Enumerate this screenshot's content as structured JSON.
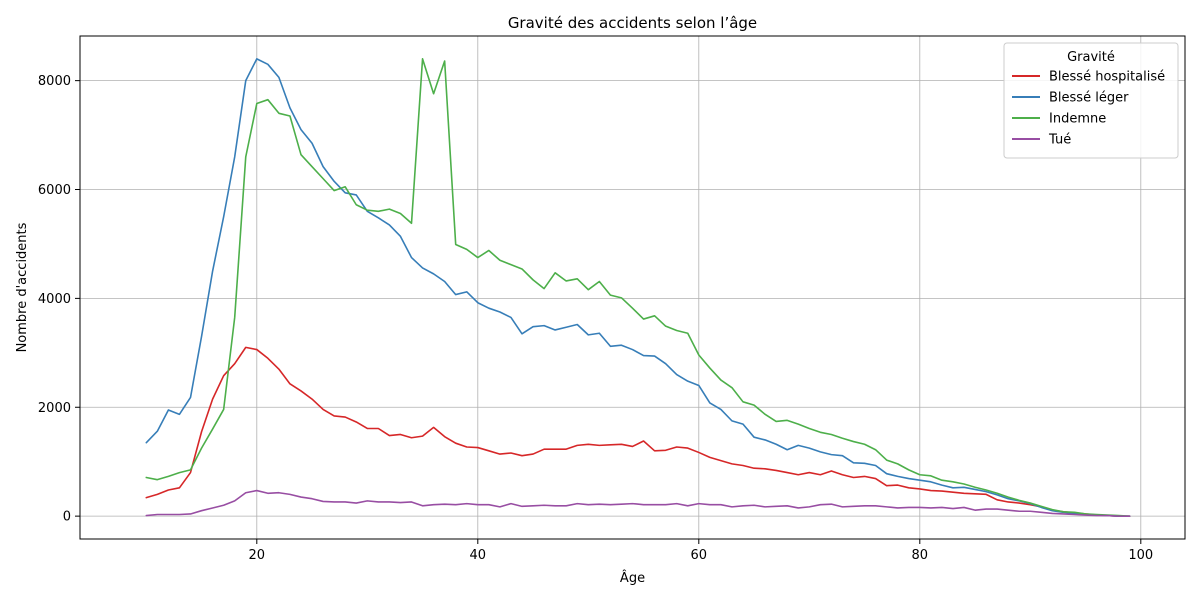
{
  "chart_data": {
    "type": "line",
    "title": "Gravité des accidents selon l’âge",
    "xlabel": "Âge",
    "ylabel": "Nombre d'accidents",
    "xlim": [
      4,
      104
    ],
    "ylim": [
      -420,
      8820
    ],
    "xticks": [
      20,
      40,
      60,
      80,
      100
    ],
    "yticks": [
      0,
      2000,
      4000,
      6000,
      8000
    ],
    "grid": true,
    "legend": {
      "title": "Gravité",
      "placement": "top-right"
    },
    "x": [
      10,
      11,
      12,
      13,
      14,
      15,
      16,
      17,
      18,
      19,
      20,
      21,
      22,
      23,
      24,
      25,
      26,
      27,
      28,
      29,
      30,
      31,
      32,
      33,
      34,
      35,
      36,
      37,
      38,
      39,
      40,
      41,
      42,
      43,
      44,
      45,
      46,
      47,
      48,
      49,
      50,
      51,
      52,
      53,
      54,
      55,
      56,
      57,
      58,
      59,
      60,
      61,
      62,
      63,
      64,
      65,
      66,
      67,
      68,
      69,
      70,
      71,
      72,
      73,
      74,
      75,
      76,
      77,
      78,
      79,
      80,
      81,
      82,
      83,
      84,
      85,
      86,
      87,
      88,
      89,
      90,
      91,
      92,
      93,
      94,
      95,
      96,
      97,
      98,
      99
    ],
    "series": [
      {
        "name": "Blessé hospitalisé",
        "color": "#d62728",
        "values": [
          340,
          400,
          480,
          520,
          800,
          1550,
          2150,
          2580,
          2800,
          3100,
          3060,
          2900,
          2700,
          2430,
          2300,
          2150,
          1960,
          1840,
          1820,
          1730,
          1610,
          1610,
          1480,
          1500,
          1440,
          1470,
          1630,
          1460,
          1340,
          1270,
          1260,
          1200,
          1140,
          1160,
          1110,
          1140,
          1230,
          1230,
          1230,
          1300,
          1320,
          1300,
          1310,
          1320,
          1280,
          1380,
          1200,
          1210,
          1270,
          1250,
          1170,
          1080,
          1020,
          960,
          930,
          880,
          870,
          840,
          800,
          760,
          800,
          760,
          830,
          760,
          710,
          730,
          690,
          560,
          570,
          520,
          500,
          470,
          460,
          440,
          420,
          410,
          400,
          300,
          260,
          240,
          210,
          170,
          110,
          80,
          60,
          40,
          20,
          10,
          0,
          0
        ]
      },
      {
        "name": "Blessé léger",
        "color": "#377eb8",
        "values": [
          1350,
          1560,
          1950,
          1870,
          2180,
          3300,
          4500,
          5500,
          6600,
          8000,
          8400,
          8300,
          8060,
          7500,
          7100,
          6850,
          6420,
          6150,
          5940,
          5900,
          5600,
          5480,
          5350,
          5140,
          4750,
          4560,
          4450,
          4310,
          4070,
          4120,
          3920,
          3820,
          3750,
          3650,
          3350,
          3480,
          3500,
          3420,
          3470,
          3520,
          3330,
          3360,
          3120,
          3140,
          3060,
          2950,
          2940,
          2800,
          2600,
          2480,
          2400,
          2080,
          1960,
          1750,
          1690,
          1450,
          1400,
          1320,
          1220,
          1300,
          1250,
          1180,
          1130,
          1110,
          980,
          970,
          930,
          780,
          730,
          690,
          660,
          630,
          570,
          520,
          530,
          490,
          450,
          390,
          320,
          280,
          230,
          160,
          100,
          70,
          50,
          30,
          20,
          10,
          0,
          0
        ]
      },
      {
        "name": "Indemne",
        "color": "#4daf4a",
        "values": [
          710,
          670,
          730,
          800,
          850,
          1250,
          1600,
          1960,
          3650,
          6600,
          7580,
          7650,
          7400,
          7350,
          6640,
          6420,
          6200,
          5980,
          6050,
          5720,
          5620,
          5600,
          5640,
          5560,
          5380,
          8400,
          7760,
          8360,
          4990,
          4900,
          4750,
          4880,
          4700,
          4620,
          4540,
          4340,
          4180,
          4470,
          4320,
          4360,
          4160,
          4310,
          4060,
          4010,
          3820,
          3620,
          3680,
          3490,
          3410,
          3360,
          2960,
          2720,
          2500,
          2360,
          2100,
          2040,
          1870,
          1740,
          1760,
          1690,
          1610,
          1540,
          1500,
          1430,
          1370,
          1320,
          1220,
          1030,
          960,
          850,
          760,
          740,
          660,
          630,
          590,
          530,
          480,
          420,
          350,
          290,
          240,
          180,
          120,
          80,
          70,
          40,
          30,
          20,
          10,
          0
        ]
      },
      {
        "name": "Tué",
        "color": "#984ea3",
        "values": [
          10,
          30,
          30,
          30,
          40,
          100,
          150,
          200,
          280,
          430,
          470,
          420,
          430,
          400,
          350,
          320,
          270,
          260,
          260,
          240,
          280,
          260,
          260,
          250,
          260,
          190,
          210,
          220,
          210,
          230,
          210,
          210,
          170,
          230,
          180,
          190,
          200,
          190,
          190,
          230,
          210,
          220,
          210,
          220,
          230,
          210,
          210,
          210,
          230,
          190,
          230,
          210,
          210,
          170,
          190,
          200,
          170,
          180,
          190,
          150,
          170,
          210,
          220,
          170,
          180,
          190,
          190,
          170,
          150,
          160,
          160,
          150,
          160,
          140,
          160,
          110,
          130,
          130,
          110,
          90,
          90,
          70,
          50,
          40,
          30,
          20,
          10,
          10,
          0,
          0
        ]
      }
    ]
  }
}
